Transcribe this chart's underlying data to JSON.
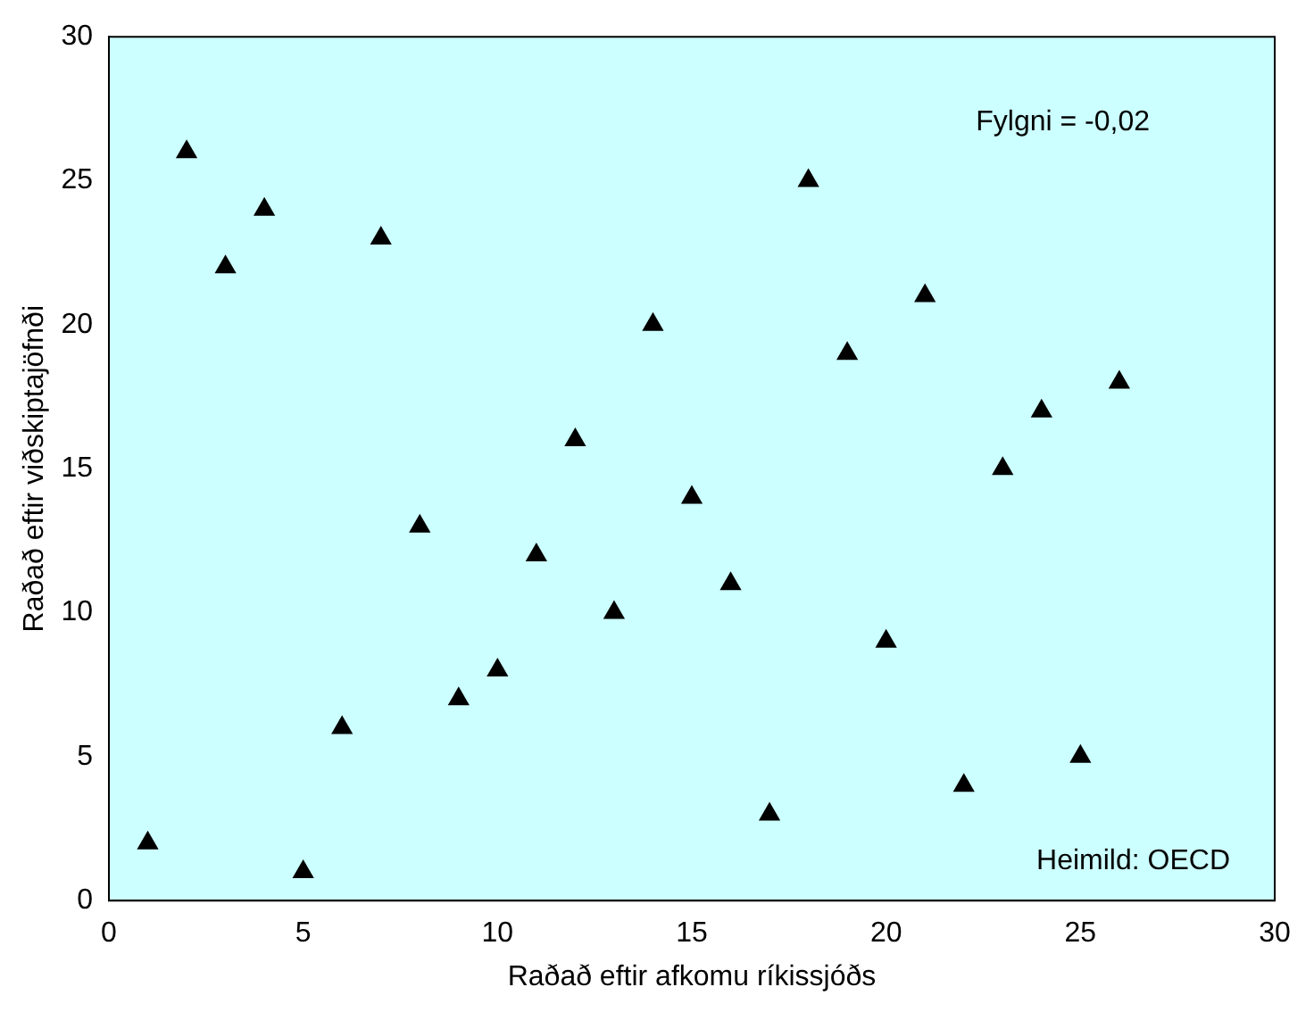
{
  "chart_data": {
    "type": "scatter",
    "xlabel": "Raðað eftir afkomu ríkissjóðs",
    "ylabel": "Raðað eftir viðskiptajöfnði",
    "x": [
      1,
      2,
      3,
      4,
      5,
      6,
      7,
      8,
      9,
      10,
      11,
      12,
      13,
      14,
      15,
      16,
      17,
      18,
      19,
      20,
      21,
      22,
      23,
      24,
      25,
      26
    ],
    "series": [
      {
        "color": "#000000",
        "values": [
          2,
          26,
          22,
          24,
          1,
          6,
          23,
          13,
          7,
          8,
          12,
          16,
          10,
          20,
          14,
          11,
          3,
          25,
          19,
          9,
          21,
          4,
          15,
          17,
          5,
          18
        ]
      }
    ],
    "xlim": [
      0,
      30
    ],
    "xticks": [
      0,
      5,
      10,
      15,
      20,
      25,
      30
    ],
    "ylim": [
      0,
      30
    ],
    "yticks": [
      0,
      5,
      10,
      15,
      20,
      25,
      30
    ],
    "marker": "triangle",
    "grid": false,
    "legend": false,
    "annotations": [
      "Fylgni = -0,02",
      "Heimild: OECD"
    ]
  }
}
